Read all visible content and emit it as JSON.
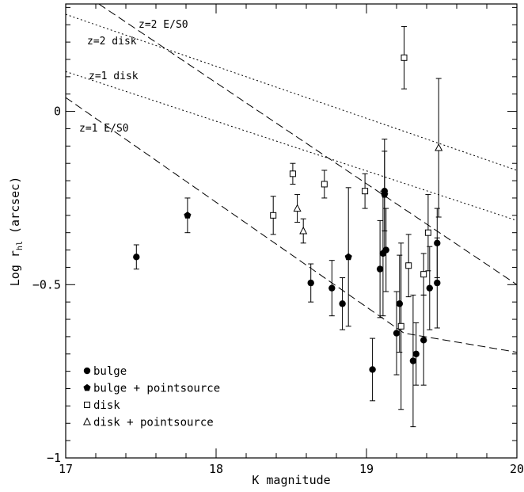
{
  "chart_data": {
    "type": "scatter",
    "xlabel": "K magnitude",
    "ylabel": {
      "main": "Log r",
      "sub": "hl",
      "unit": " (arcsec)"
    },
    "xlim": [
      17,
      20
    ],
    "ylim": [
      -1,
      0.31
    ],
    "x_ticks": [
      17,
      18,
      19,
      20
    ],
    "x_tick_labels": [
      "17",
      "18",
      "19",
      "20"
    ],
    "y_ticks": [
      -1,
      -0.5,
      0
    ],
    "y_tick_labels": [
      "−1",
      "−0.5",
      "0"
    ],
    "grid": false,
    "legend_position": "bottom-left",
    "reference_lines": [
      {
        "label": "z=2 E/S0",
        "style": "dashed",
        "x": [
          17.22,
          20
        ],
        "y": [
          0.31,
          -0.5
        ]
      },
      {
        "label": "z=1 E/S0",
        "style": "dashed",
        "x": [
          17,
          19.25,
          20
        ],
        "y": [
          0.04,
          -0.64,
          -0.695
        ]
      },
      {
        "label": "z=2 disk",
        "style": "dotted",
        "x": [
          17,
          20
        ],
        "y": [
          0.28,
          -0.17
        ]
      },
      {
        "label": "z=1 disk",
        "style": "dotted",
        "x": [
          17,
          20
        ],
        "y": [
          0.115,
          -0.315
        ]
      }
    ],
    "series": [
      {
        "name": "bulge",
        "marker": "circle",
        "points": [
          {
            "x": 17.47,
            "y": -0.42,
            "err": 0.035
          },
          {
            "x": 18.63,
            "y": -0.495,
            "err": 0.055
          },
          {
            "x": 18.77,
            "y": -0.51,
            "err": 0.08
          },
          {
            "x": 18.84,
            "y": -0.555,
            "err": 0.075
          },
          {
            "x": 19.04,
            "y": -0.745,
            "err": 0.09
          },
          {
            "x": 19.09,
            "y": -0.455,
            "err": 0.14
          },
          {
            "x": 19.11,
            "y": -0.41,
            "err": 0.18
          },
          {
            "x": 19.12,
            "y": -0.23,
            "err": 0.115
          },
          {
            "x": 19.13,
            "y": -0.4,
            "err": 0.12
          },
          {
            "x": 19.2,
            "y": -0.64,
            "err": 0.12
          },
          {
            "x": 19.22,
            "y": -0.555,
            "err": 0.14
          },
          {
            "x": 19.31,
            "y": -0.72,
            "err": 0.19
          },
          {
            "x": 19.33,
            "y": -0.7,
            "err": 0.09
          },
          {
            "x": 19.38,
            "y": -0.66,
            "err": 0.13
          },
          {
            "x": 19.42,
            "y": -0.51,
            "err": 0.12
          },
          {
            "x": 19.47,
            "y": -0.38,
            "err": 0.1
          },
          {
            "x": 19.47,
            "y": -0.495,
            "err": 0.13
          }
        ]
      },
      {
        "name": "bulge + pointsource",
        "marker": "pentagon",
        "points": [
          {
            "x": 17.81,
            "y": -0.3,
            "err": 0.05
          },
          {
            "x": 18.88,
            "y": -0.42,
            "err": 0.2
          },
          {
            "x": 19.12,
            "y": -0.24,
            "err": 0.16
          }
        ]
      },
      {
        "name": "disk",
        "marker": "square",
        "points": [
          {
            "x": 18.38,
            "y": -0.3,
            "err": 0.055
          },
          {
            "x": 18.51,
            "y": -0.18,
            "err": 0.03
          },
          {
            "x": 18.72,
            "y": -0.21,
            "err": 0.04
          },
          {
            "x": 18.99,
            "y": -0.23,
            "err": 0.05
          },
          {
            "x": 19.23,
            "y": -0.62,
            "err": 0.24
          },
          {
            "x": 19.25,
            "y": 0.155,
            "err": 0.09
          },
          {
            "x": 19.28,
            "y": -0.445,
            "err": 0.09
          },
          {
            "x": 19.38,
            "y": -0.47,
            "err": 0.06
          },
          {
            "x": 19.41,
            "y": -0.35,
            "err": 0.11
          }
        ]
      },
      {
        "name": "disk + pointsource",
        "marker": "triangle",
        "points": [
          {
            "x": 18.54,
            "y": -0.28,
            "err": 0.04
          },
          {
            "x": 18.58,
            "y": -0.345,
            "err": 0.035
          },
          {
            "x": 19.48,
            "y": -0.105,
            "err": 0.2
          }
        ]
      }
    ]
  }
}
